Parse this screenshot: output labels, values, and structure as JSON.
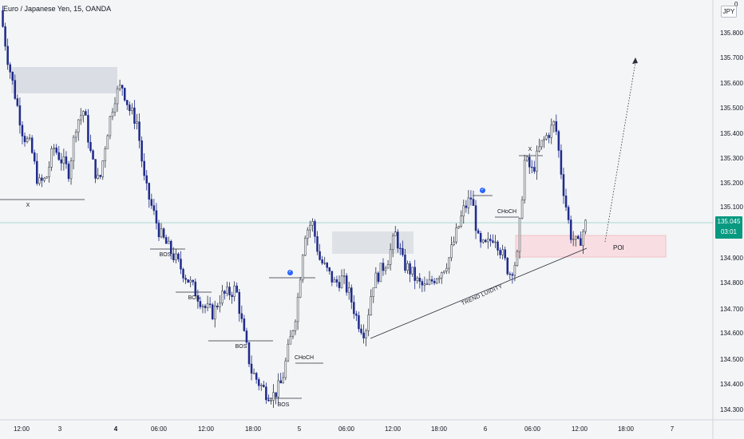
{
  "header": {
    "symbol_title": "Euro / Japanese Yen, 15, OANDA",
    "currency_button": "JPY",
    "top_right_glyph": "0"
  },
  "price_axis": {
    "ticks": [
      "135.800",
      "135.700",
      "135.600",
      "135.500",
      "135.400",
      "135.300",
      "135.200",
      "135.100",
      "135.000",
      "134.900",
      "134.800",
      "134.700",
      "134.600",
      "134.500",
      "134.400",
      "134.300"
    ]
  },
  "time_axis": {
    "ticks": [
      "12:00",
      "3",
      "4",
      "06:00",
      "12:00",
      "18:00",
      "5",
      "06:00",
      "12:00",
      "18:00",
      "6",
      "06:00",
      "12:00",
      "18:00",
      "7"
    ]
  },
  "last_price": {
    "value": "135.045",
    "countdown": "03:01",
    "color": "#089981"
  },
  "annotations": {
    "x_left": "X",
    "bos_1": "BOS",
    "bos_2": "BOS",
    "bos_3": "BOS",
    "bos_4": "BOS",
    "choch_1": "CHoCH",
    "choch_2": "CHoCH",
    "x_right": "X",
    "trend_liquidity": "TREND LUIDITY",
    "poi": "POI",
    "check_glyph": "✓"
  },
  "colors": {
    "up": "#2a2e39",
    "down": "#1e2a8a",
    "supply_zone": "#d1d4dc",
    "poi_zone": "#f8dee2",
    "price_line": "#089981",
    "check_badge": "#2962ff"
  },
  "chart_data": {
    "type": "candlestick",
    "symbol": "Euro / Japanese Yen, 15, OANDA",
    "timeframe": "15",
    "ylim": [
      134.27,
      135.92
    ],
    "y_axis_ticks": [
      135.8,
      135.7,
      135.6,
      135.5,
      135.4,
      135.3,
      135.2,
      135.1,
      135.0,
      134.9,
      134.8,
      134.7,
      134.6,
      134.5,
      134.4,
      134.3
    ],
    "x_axis_ticks": [
      "12:00",
      "3",
      "4",
      "06:00",
      "12:00",
      "18:00",
      "5",
      "06:00",
      "12:00",
      "18:00",
      "6",
      "06:00",
      "12:00",
      "18:00",
      "7"
    ],
    "close_path": [
      135.9,
      135.7,
      135.55,
      135.4,
      135.35,
      135.2,
      135.22,
      135.35,
      135.3,
      135.25,
      135.45,
      135.5,
      135.3,
      135.2,
      135.4,
      135.55,
      135.6,
      135.5,
      135.45,
      135.2,
      135.1,
      135.0,
      134.95,
      134.9,
      134.85,
      134.8,
      134.75,
      134.7,
      134.68,
      134.75,
      134.76,
      134.78,
      134.6,
      134.45,
      134.4,
      134.36,
      134.35,
      134.4,
      134.55,
      134.7,
      135.0,
      135.05,
      134.9,
      134.85,
      134.8,
      134.82,
      134.75,
      134.65,
      134.6,
      134.8,
      134.85,
      134.9,
      135.0,
      134.88,
      134.85,
      134.8,
      134.78,
      134.82,
      134.85,
      134.9,
      135.0,
      135.1,
      135.15,
      134.95,
      134.95,
      135.0,
      134.92,
      134.84,
      134.9,
      135.3,
      135.25,
      135.35,
      135.4,
      135.45,
      135.2,
      135.0,
      134.95,
      135.04
    ],
    "annotated_levels": [
      {
        "label": "BOS",
        "price": 134.92
      },
      {
        "label": "BOS",
        "price": 134.76
      },
      {
        "label": "BOS",
        "price": 134.57
      },
      {
        "label": "BOS",
        "price": 134.33
      },
      {
        "label": "CHoCH",
        "price": 134.49
      },
      {
        "label": "CHoCH",
        "price": 135.03
      },
      {
        "label": "X",
        "price": 135.12
      },
      {
        "label": "X",
        "price": 135.32
      }
    ],
    "zones": [
      {
        "label": "",
        "top": 135.67,
        "bottom": 135.56
      },
      {
        "label": "",
        "top": 135.01,
        "bottom": 134.92
      },
      {
        "label": "POI",
        "top": 135.0,
        "bottom": 134.91
      }
    ],
    "last_price": 135.045
  }
}
